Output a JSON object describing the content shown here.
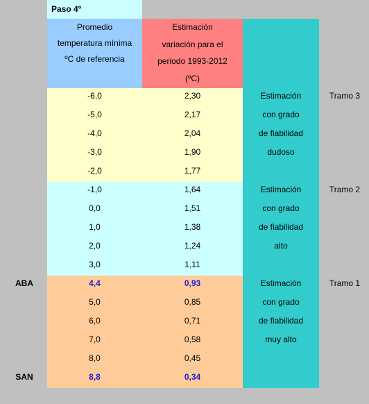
{
  "header": {
    "step": "Paso 4º",
    "columns": [
      [
        "Promedio",
        "temperatura mínima",
        "ºC de referencia"
      ],
      [
        "Estimación",
        "variación para el",
        "periodo 1993-2012",
        "(ºC)"
      ]
    ]
  },
  "groups": [
    {
      "tramo": "Tramo 3",
      "description": [
        "Estimación",
        "con grado",
        "de fiabilidad",
        "dudoso"
      ],
      "rows": [
        {
          "min_temp": "-6,0",
          "variation": "2,30"
        },
        {
          "min_temp": "-5,0",
          "variation": "2,17"
        },
        {
          "min_temp": "-4,0",
          "variation": "2,04"
        },
        {
          "min_temp": "-3,0",
          "variation": "1,90"
        },
        {
          "min_temp": "-2,0",
          "variation": "1,77"
        }
      ]
    },
    {
      "tramo": "Tramo 2",
      "description": [
        "Estimación",
        "con grado",
        "de fiabilidad",
        "alto"
      ],
      "rows": [
        {
          "min_temp": "-1,0",
          "variation": "1,64"
        },
        {
          "min_temp": "0,0",
          "variation": "1,51"
        },
        {
          "min_temp": "1,0",
          "variation": "1,38"
        },
        {
          "min_temp": "2,0",
          "variation": "1,24"
        },
        {
          "min_temp": "3,0",
          "variation": "1,11"
        }
      ]
    },
    {
      "tramo": "Tramo 1",
      "description": [
        "Estimación",
        "con grado",
        "de fiabilidad",
        "muy alto"
      ],
      "rows": [
        {
          "label": "ABA",
          "min_temp": "4,4",
          "variation": "0,93"
        },
        {
          "min_temp": "5,0",
          "variation": "0,85"
        },
        {
          "min_temp": "6,0",
          "variation": "0,71"
        },
        {
          "min_temp": "7,0",
          "variation": "0,58"
        },
        {
          "min_temp": "8,0",
          "variation": "0,45"
        },
        {
          "label": "SAN",
          "min_temp": "8,8",
          "variation": "0,34"
        }
      ]
    }
  ]
}
